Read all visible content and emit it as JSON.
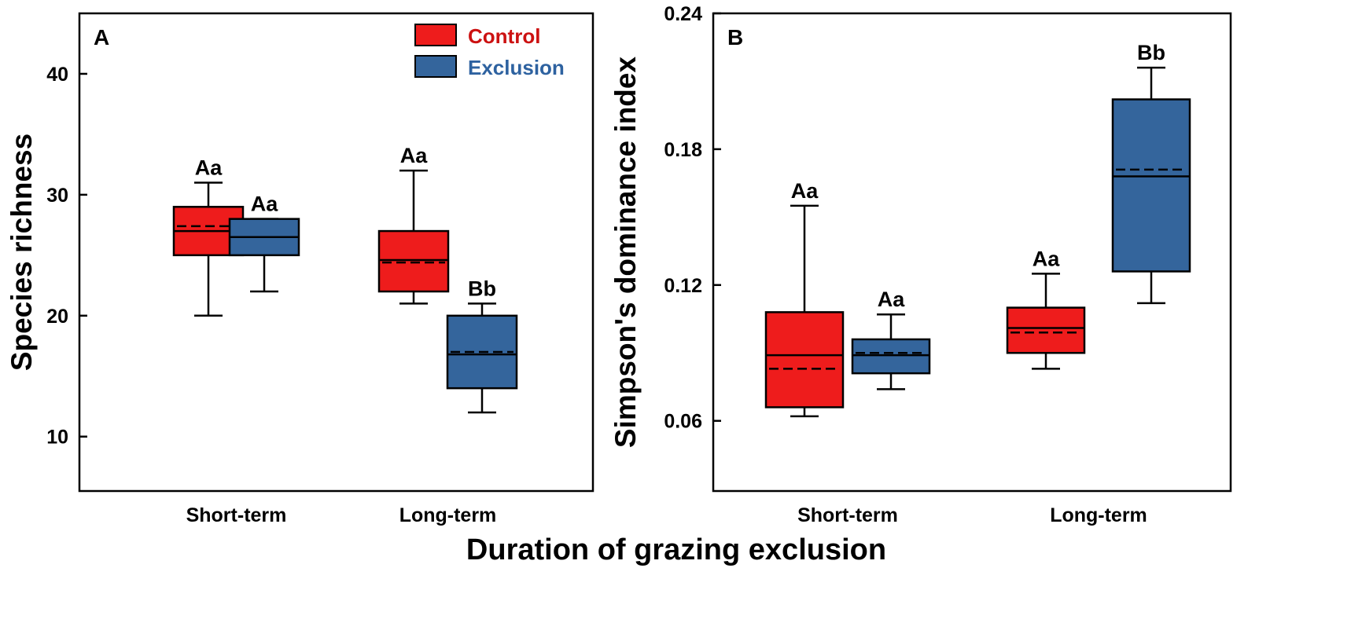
{
  "colors": {
    "control": "#ee1c1c",
    "exclusion": "#34659c",
    "control_label": "#cc1111",
    "exclusion_label": "#2e62a0"
  },
  "legend": {
    "control": "Control",
    "exclusion": "Exclusion"
  },
  "shared_xlabel": "Duration of grazing exclusion",
  "chart_data": [
    {
      "type": "box",
      "panel": "A",
      "ylabel": "Species richness",
      "categories": [
        "Short-term",
        "Long-term"
      ],
      "ylim": [
        5.5,
        45
      ],
      "yticks": [
        "10",
        "20",
        "30",
        "40"
      ],
      "series": [
        {
          "name": "Control",
          "boxes": [
            {
              "min": 20,
              "q1": 25,
              "median": 27,
              "mean": 27.4,
              "q3": 29,
              "max": 31,
              "label": "Aa"
            },
            {
              "min": 21,
              "q1": 22,
              "median": 24.6,
              "mean": 24.4,
              "q3": 27,
              "max": 32,
              "label": "Aa"
            }
          ]
        },
        {
          "name": "Exclusion",
          "boxes": [
            {
              "min": 22,
              "q1": 25,
              "median": 26.5,
              "mean": 26.5,
              "q3": 28,
              "max": 28,
              "label": "Aa"
            },
            {
              "min": 12,
              "q1": 14,
              "median": 16.8,
              "mean": 17.0,
              "q3": 20,
              "max": 21,
              "label": "Bb"
            }
          ]
        }
      ]
    },
    {
      "type": "box",
      "panel": "B",
      "ylabel": "Simpson's dominance index",
      "categories": [
        "Short-term",
        "Long-term"
      ],
      "ylim": [
        0.029,
        0.24
      ],
      "yticks": [
        "0.06",
        "0.12",
        "0.18",
        "0.24"
      ],
      "series": [
        {
          "name": "Control",
          "boxes": [
            {
              "min": 0.062,
              "q1": 0.066,
              "median": 0.089,
              "mean": 0.083,
              "q3": 0.108,
              "max": 0.155,
              "label": "Aa"
            },
            {
              "min": 0.083,
              "q1": 0.09,
              "median": 0.101,
              "mean": 0.099,
              "q3": 0.11,
              "max": 0.125,
              "label": "Aa"
            }
          ]
        },
        {
          "name": "Exclusion",
          "boxes": [
            {
              "min": 0.074,
              "q1": 0.081,
              "median": 0.089,
              "mean": 0.09,
              "q3": 0.096,
              "max": 0.107,
              "label": "Aa"
            },
            {
              "min": 0.112,
              "q1": 0.126,
              "median": 0.168,
              "mean": 0.171,
              "q3": 0.202,
              "max": 0.216,
              "label": "Bb"
            }
          ]
        }
      ]
    }
  ]
}
